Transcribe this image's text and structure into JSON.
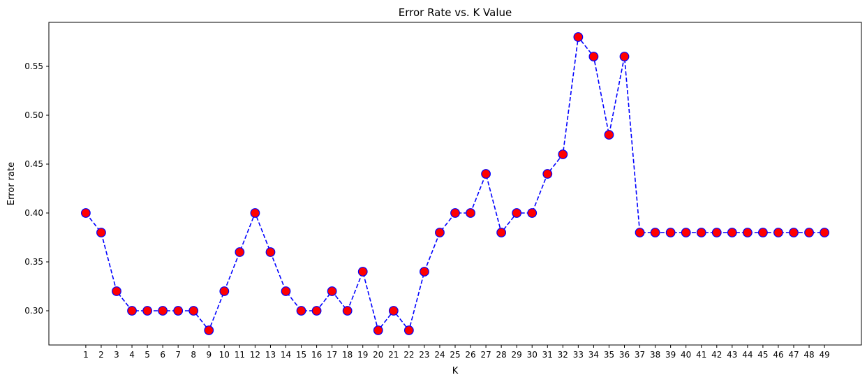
{
  "chart_data": {
    "type": "line",
    "title": "Error Rate vs. K Value",
    "xlabel": "K",
    "ylabel": "Error rate",
    "x": [
      1,
      2,
      3,
      4,
      5,
      6,
      7,
      8,
      9,
      10,
      11,
      12,
      13,
      14,
      15,
      16,
      17,
      18,
      19,
      20,
      21,
      22,
      23,
      24,
      25,
      26,
      27,
      28,
      29,
      30,
      31,
      32,
      33,
      34,
      35,
      36,
      37,
      38,
      39,
      40,
      41,
      42,
      43,
      44,
      45,
      46,
      47,
      48,
      49
    ],
    "series": [
      {
        "values": [
          0.4,
          0.38,
          0.32,
          0.3,
          0.3,
          0.3,
          0.3,
          0.3,
          0.28,
          0.32,
          0.36,
          0.4,
          0.36,
          0.32,
          0.3,
          0.3,
          0.32,
          0.3,
          0.34,
          0.28,
          0.3,
          0.28,
          0.34,
          0.38,
          0.4,
          0.4,
          0.44,
          0.38,
          0.4,
          0.4,
          0.44,
          0.46,
          0.58,
          0.56,
          0.48,
          0.56,
          0.38,
          0.38,
          0.38,
          0.38,
          0.38,
          0.38,
          0.38,
          0.38,
          0.38,
          0.38,
          0.38,
          0.38,
          0.38
        ]
      }
    ],
    "xticks": [
      "1",
      "2",
      "3",
      "4",
      "5",
      "6",
      "7",
      "8",
      "9",
      "10",
      "11",
      "12",
      "13",
      "14",
      "15",
      "16",
      "17",
      "18",
      "19",
      "20",
      "21",
      "22",
      "23",
      "24",
      "25",
      "26",
      "27",
      "28",
      "29",
      "30",
      "31",
      "32",
      "33",
      "34",
      "35",
      "36",
      "37",
      "38",
      "39",
      "40",
      "41",
      "42",
      "43",
      "44",
      "45",
      "46",
      "47",
      "48",
      "49"
    ],
    "yticks": [
      0.3,
      0.35,
      0.4,
      0.45,
      0.5,
      0.55
    ],
    "ytick_labels": [
      "0.30",
      "0.35",
      "0.40",
      "0.45",
      "0.50",
      "0.55"
    ],
    "xlim": [
      -1.4,
      51.4
    ],
    "ylim": [
      0.265,
      0.595
    ],
    "grid": false,
    "line_color": "#0000ff",
    "line_style": "dashed",
    "marker_face_color": "#ff0000",
    "marker_edge_color": "#0000ff"
  }
}
